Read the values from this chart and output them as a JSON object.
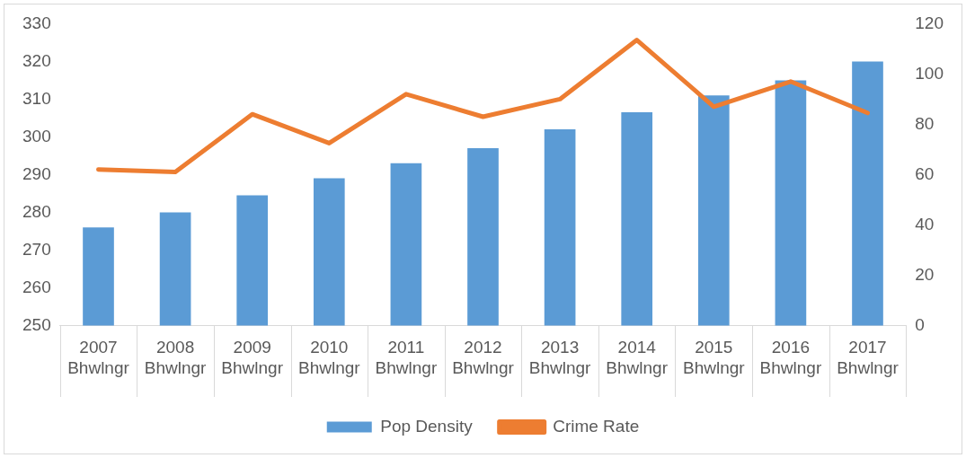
{
  "chart_data": {
    "type": "bar",
    "categories": [
      "2007\nBhwlngr",
      "2008\nBhwlngr",
      "2009\nBhwlngr",
      "2010\nBhwlngr",
      "2011\nBhwlngr",
      "2012\nBhwlngr",
      "2013\nBhwlngr",
      "2014\nBhwlngr",
      "2015\nBhwlngr",
      "2016\nBhwlngr",
      "2017\nBhwlngr"
    ],
    "series": [
      {
        "name": "Pop Density",
        "color": "#5b9bd5",
        "values": [
          276,
          280,
          284.5,
          289,
          293,
          297,
          302,
          306.5,
          311,
          315,
          320
        ]
      },
      {
        "name": "Crime Rate",
        "type": "line",
        "axis": "y2",
        "color": "#ed7d31",
        "values": [
          62,
          61,
          84,
          72.5,
          92,
          83,
          90,
          113.5,
          87,
          97,
          84.5
        ]
      }
    ],
    "ylim": [
      250,
      330
    ],
    "yticks": [
      250,
      260,
      270,
      280,
      290,
      300,
      310,
      320,
      330
    ],
    "y2lim": [
      0,
      120
    ],
    "y2ticks": [
      0,
      20,
      40,
      60,
      80,
      100,
      120
    ],
    "grid": false,
    "legend": "bottom",
    "marker": "none",
    "line_style": "solid"
  }
}
